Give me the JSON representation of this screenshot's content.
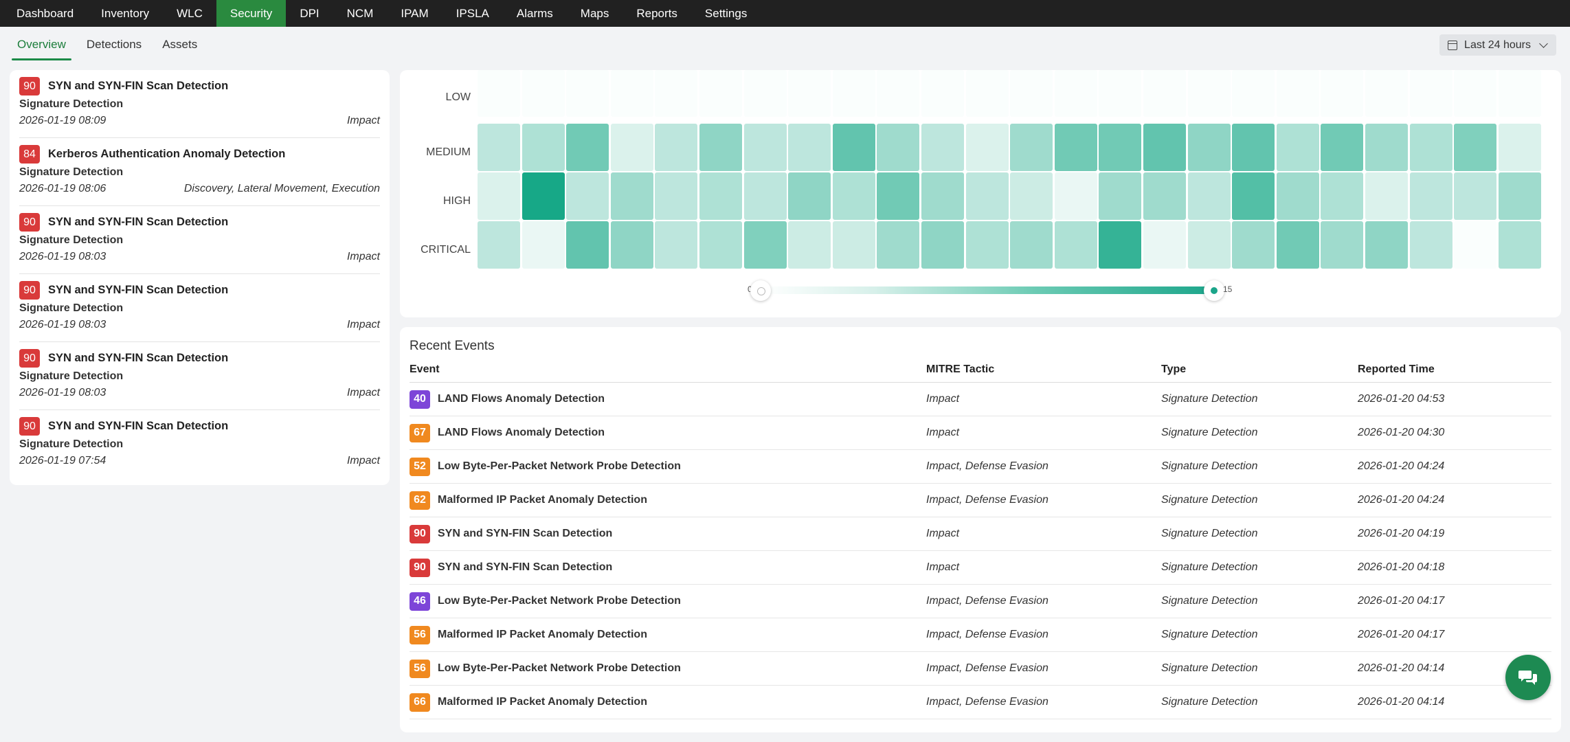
{
  "topnav": {
    "items": [
      "Dashboard",
      "Inventory",
      "WLC",
      "Security",
      "DPI",
      "NCM",
      "IPAM",
      "IPSLA",
      "Alarms",
      "Maps",
      "Reports",
      "Settings"
    ],
    "active": "Security"
  },
  "subnav": {
    "tabs": [
      "Overview",
      "Detections",
      "Assets"
    ],
    "active": "Overview"
  },
  "time_filter": {
    "label": "Last 24 hours",
    "icon": "calendar-icon"
  },
  "detections": [
    {
      "score": "90",
      "color": "#d93a3a",
      "title": "SYN and SYN-FIN Scan Detection",
      "type": "Signature Detection",
      "time": "2026-01-19 08:09",
      "tactic": "Impact"
    },
    {
      "score": "84",
      "color": "#d93a3a",
      "title": "Kerberos Authentication Anomaly Detection",
      "type": "Signature Detection",
      "time": "2026-01-19 08:06",
      "tactic": "Discovery, Lateral Movement, Execution"
    },
    {
      "score": "90",
      "color": "#d93a3a",
      "title": "SYN and SYN-FIN Scan Detection",
      "type": "Signature Detection",
      "time": "2026-01-19 08:03",
      "tactic": "Impact"
    },
    {
      "score": "90",
      "color": "#d93a3a",
      "title": "SYN and SYN-FIN Scan Detection",
      "type": "Signature Detection",
      "time": "2026-01-19 08:03",
      "tactic": "Impact"
    },
    {
      "score": "90",
      "color": "#d93a3a",
      "title": "SYN and SYN-FIN Scan Detection",
      "type": "Signature Detection",
      "time": "2026-01-19 08:03",
      "tactic": "Impact"
    },
    {
      "score": "90",
      "color": "#d93a3a",
      "title": "SYN and SYN-FIN Scan Detection",
      "type": "Signature Detection",
      "time": "2026-01-19 07:54",
      "tactic": "Impact"
    }
  ],
  "heatmap": {
    "rows": [
      "LOW",
      "MEDIUM",
      "HIGH",
      "CRITICAL"
    ],
    "columns": 24,
    "scale_min": "0",
    "scale_max": "15",
    "values": [
      [
        0,
        0,
        0,
        0,
        0,
        0,
        0,
        0,
        0,
        0,
        0,
        0,
        0,
        0,
        0,
        0,
        0,
        0,
        0,
        0,
        0,
        0,
        0,
        0
      ],
      [
        4,
        5,
        9,
        2,
        4,
        7,
        4,
        4,
        10,
        6,
        4,
        2,
        6,
        9,
        9,
        10,
        7,
        10,
        5,
        9,
        6,
        5,
        8,
        2
      ],
      [
        2,
        15,
        4,
        6,
        4,
        5,
        4,
        7,
        5,
        9,
        6,
        4,
        3,
        1,
        6,
        6,
        4,
        11,
        6,
        5,
        2,
        4,
        4,
        6
      ],
      [
        4,
        1,
        10,
        7,
        4,
        5,
        8,
        3,
        3,
        6,
        7,
        5,
        6,
        5,
        13,
        1,
        3,
        6,
        9,
        6,
        7,
        4,
        0,
        5
      ]
    ],
    "palette": [
      "#fafefd",
      "#eaf7f4",
      "#dbf2ec",
      "#ccece4",
      "#bde6dd",
      "#aee1d5",
      "#9fdbcd",
      "#8fd5c5",
      "#80d0bd",
      "#71cab5",
      "#62c4ae",
      "#53bfa6",
      "#44b99e",
      "#35b396",
      "#26ae8f",
      "#17a887"
    ]
  },
  "events": {
    "title": "Recent Events",
    "columns": [
      "Event",
      "MITRE Tactic",
      "Type",
      "Reported Time"
    ],
    "rows": [
      {
        "score": "40",
        "color": "#7d45d8",
        "event": "LAND Flows Anomaly Detection",
        "tactic": "Impact",
        "type": "Signature Detection",
        "time": "2026-01-20 04:53"
      },
      {
        "score": "67",
        "color": "#f0891f",
        "event": "LAND Flows Anomaly Detection",
        "tactic": "Impact",
        "type": "Signature Detection",
        "time": "2026-01-20 04:30"
      },
      {
        "score": "52",
        "color": "#f0891f",
        "event": "Low Byte-Per-Packet Network Probe Detection",
        "tactic": "Impact, Defense Evasion",
        "type": "Signature Detection",
        "time": "2026-01-20 04:24"
      },
      {
        "score": "62",
        "color": "#f0891f",
        "event": "Malformed IP Packet Anomaly Detection",
        "tactic": "Impact, Defense Evasion",
        "type": "Signature Detection",
        "time": "2026-01-20 04:24"
      },
      {
        "score": "90",
        "color": "#d93a3a",
        "event": "SYN and SYN-FIN Scan Detection",
        "tactic": "Impact",
        "type": "Signature Detection",
        "time": "2026-01-20 04:19"
      },
      {
        "score": "90",
        "color": "#d93a3a",
        "event": "SYN and SYN-FIN Scan Detection",
        "tactic": "Impact",
        "type": "Signature Detection",
        "time": "2026-01-20 04:18"
      },
      {
        "score": "46",
        "color": "#7d45d8",
        "event": "Low Byte-Per-Packet Network Probe Detection",
        "tactic": "Impact, Defense Evasion",
        "type": "Signature Detection",
        "time": "2026-01-20 04:17"
      },
      {
        "score": "56",
        "color": "#f0891f",
        "event": "Malformed IP Packet Anomaly Detection",
        "tactic": "Impact, Defense Evasion",
        "type": "Signature Detection",
        "time": "2026-01-20 04:17"
      },
      {
        "score": "56",
        "color": "#f0891f",
        "event": "Low Byte-Per-Packet Network Probe Detection",
        "tactic": "Impact, Defense Evasion",
        "type": "Signature Detection",
        "time": "2026-01-20 04:14"
      },
      {
        "score": "66",
        "color": "#f0891f",
        "event": "Malformed IP Packet Anomaly Detection",
        "tactic": "Impact, Defense Evasion",
        "type": "Signature Detection",
        "time": "2026-01-20 04:14"
      }
    ]
  },
  "chat_button": {
    "icon": "chat-icon"
  }
}
